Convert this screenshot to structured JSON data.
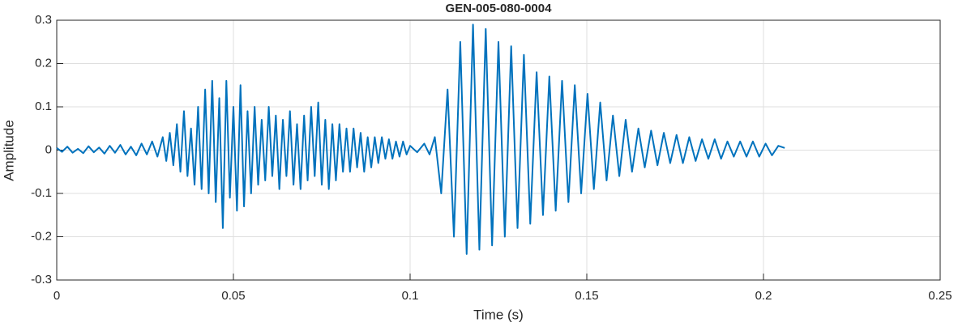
{
  "chart_data": {
    "type": "line",
    "title": "GEN-005-080-0004",
    "xlabel": "Time (s)",
    "ylabel": "Amplitude",
    "xlim": [
      0,
      0.25
    ],
    "xticks": [
      0,
      0.05,
      0.1,
      0.15,
      0.2,
      0.25
    ],
    "ylim": [
      -0.3,
      0.3
    ],
    "yticks": [
      -0.3,
      -0.2,
      -0.1,
      0,
      0.1,
      0.2,
      0.3
    ],
    "grid": true,
    "x": [
      0,
      0.0015,
      0.003,
      0.0045,
      0.006,
      0.0075,
      0.009,
      0.0105,
      0.012,
      0.0135,
      0.015,
      0.0165,
      0.018,
      0.0195,
      0.021,
      0.0225,
      0.024,
      0.0255,
      0.027,
      0.0285,
      0.03,
      0.031,
      0.032,
      0.033,
      0.034,
      0.035,
      0.036,
      0.037,
      0.038,
      0.039,
      0.04,
      0.041,
      0.042,
      0.043,
      0.044,
      0.045,
      0.046,
      0.047,
      0.048,
      0.049,
      0.05,
      0.051,
      0.052,
      0.053,
      0.054,
      0.055,
      0.056,
      0.057,
      0.058,
      0.059,
      0.06,
      0.061,
      0.062,
      0.063,
      0.064,
      0.065,
      0.066,
      0.067,
      0.068,
      0.069,
      0.07,
      0.071,
      0.072,
      0.073,
      0.074,
      0.075,
      0.076,
      0.077,
      0.078,
      0.079,
      0.08,
      0.081,
      0.082,
      0.083,
      0.084,
      0.085,
      0.086,
      0.087,
      0.088,
      0.089,
      0.09,
      0.091,
      0.092,
      0.093,
      0.094,
      0.095,
      0.096,
      0.097,
      0.098,
      0.099,
      0.1,
      0.102,
      0.104,
      0.1055,
      0.107,
      0.1088,
      0.1106,
      0.1124,
      0.1142,
      0.116,
      0.1178,
      0.1196,
      0.1214,
      0.1232,
      0.125,
      0.1268,
      0.1286,
      0.1304,
      0.1322,
      0.134,
      0.1358,
      0.1376,
      0.1394,
      0.1412,
      0.143,
      0.1448,
      0.1466,
      0.1484,
      0.1502,
      0.152,
      0.1538,
      0.1556,
      0.1574,
      0.1592,
      0.161,
      0.1628,
      0.1646,
      0.1664,
      0.1682,
      0.17,
      0.1718,
      0.1736,
      0.1754,
      0.1772,
      0.179,
      0.1808,
      0.1826,
      0.1844,
      0.1862,
      0.188,
      0.1898,
      0.1916,
      0.1934,
      0.1952,
      0.197,
      0.1988,
      0.2006,
      0.2024,
      0.2042,
      0.206
    ],
    "series": [
      {
        "color": "#0072bd",
        "values": [
          0.005,
          -0.004,
          0.008,
          -0.006,
          0.003,
          -0.007,
          0.009,
          -0.005,
          0.006,
          -0.008,
          0.01,
          -0.006,
          0.012,
          -0.01,
          0.008,
          -0.012,
          0.015,
          -0.01,
          0.02,
          -0.015,
          0.03,
          -0.025,
          0.04,
          -0.035,
          0.06,
          -0.05,
          0.09,
          -0.06,
          0.05,
          -0.08,
          0.1,
          -0.09,
          0.14,
          -0.1,
          0.16,
          -0.12,
          0.12,
          -0.18,
          0.16,
          -0.11,
          0.1,
          -0.14,
          0.15,
          -0.13,
          0.09,
          -0.1,
          0.1,
          -0.08,
          0.07,
          -0.07,
          0.1,
          -0.06,
          0.08,
          -0.09,
          0.07,
          -0.06,
          0.09,
          -0.08,
          0.06,
          -0.09,
          0.08,
          -0.07,
          0.1,
          -0.06,
          0.11,
          -0.08,
          0.07,
          -0.09,
          0.06,
          -0.07,
          0.06,
          -0.05,
          0.05,
          -0.05,
          0.05,
          -0.04,
          0.04,
          -0.05,
          0.03,
          -0.04,
          0.03,
          -0.03,
          0.03,
          -0.02,
          0.025,
          -0.02,
          0.02,
          -0.015,
          0.02,
          -0.01,
          0.01,
          -0.005,
          0.015,
          -0.01,
          0.03,
          -0.1,
          0.14,
          -0.2,
          0.25,
          -0.24,
          0.29,
          -0.23,
          0.28,
          -0.22,
          0.25,
          -0.2,
          0.24,
          -0.18,
          0.22,
          -0.17,
          0.18,
          -0.15,
          0.17,
          -0.14,
          0.16,
          -0.12,
          0.15,
          -0.1,
          0.13,
          -0.09,
          0.11,
          -0.07,
          0.08,
          -0.06,
          0.07,
          -0.05,
          0.05,
          -0.04,
          0.045,
          -0.035,
          0.04,
          -0.03,
          0.035,
          -0.03,
          0.03,
          -0.025,
          0.025,
          -0.02,
          0.025,
          -0.02,
          0.02,
          -0.015,
          0.02,
          -0.015,
          0.02,
          -0.015,
          0.015,
          -0.012,
          0.01,
          0.005
        ]
      }
    ]
  }
}
